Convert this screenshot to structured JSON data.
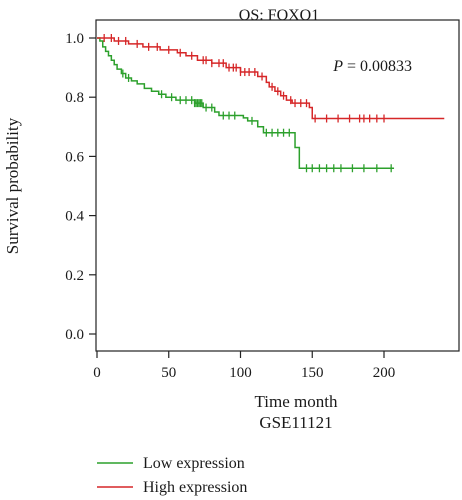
{
  "chart_data": {
    "type": "line",
    "title": "OS: FOXO1",
    "xlabel": "Time month",
    "xlabel2": "GSE11121",
    "ylabel": "Survival probability",
    "annotation": "P = 0.00833",
    "annotation_italic": "P",
    "annotation_rest": " = 0.00833",
    "xlim": [
      0,
      240
    ],
    "ylim": [
      0,
      1
    ],
    "x_ticks": [
      0,
      50,
      100,
      150,
      200
    ],
    "x_tick_labels": [
      "0",
      "50",
      "100",
      "150",
      "200"
    ],
    "y_ticks": [
      0,
      0.2,
      0.4,
      0.6,
      0.8,
      1.0
    ],
    "y_tick_labels": [
      "0.0",
      "0.2",
      "0.4",
      "0.6",
      "0.8",
      "1.0"
    ],
    "grid": false,
    "legend_position": "bottom-left",
    "series": [
      {
        "name": "Low expression",
        "color": "#2ca02c",
        "steps": [
          [
            0,
            1.0
          ],
          [
            2,
            0.99
          ],
          [
            4,
            0.97
          ],
          [
            6,
            0.955
          ],
          [
            8,
            0.94
          ],
          [
            10,
            0.925
          ],
          [
            12,
            0.91
          ],
          [
            14,
            0.895
          ],
          [
            17,
            0.88
          ],
          [
            20,
            0.865
          ],
          [
            24,
            0.855
          ],
          [
            28,
            0.845
          ],
          [
            33,
            0.83
          ],
          [
            38,
            0.82
          ],
          [
            43,
            0.81
          ],
          [
            48,
            0.8
          ],
          [
            55,
            0.79
          ],
          [
            68,
            0.78
          ],
          [
            74,
            0.765
          ],
          [
            82,
            0.75
          ],
          [
            85,
            0.738
          ],
          [
            102,
            0.73
          ],
          [
            105,
            0.72
          ],
          [
            112,
            0.7
          ],
          [
            116,
            0.68
          ],
          [
            138,
            0.63
          ],
          [
            141,
            0.56
          ],
          [
            207,
            0.56
          ]
        ],
        "censor": [
          18,
          22,
          45,
          52,
          58,
          62,
          66,
          68,
          69,
          70,
          71,
          72,
          73,
          76,
          80,
          88,
          92,
          96,
          108,
          118,
          122,
          126,
          130,
          134,
          146,
          150,
          155,
          160,
          165,
          170,
          178,
          186,
          195,
          205
        ]
      },
      {
        "name": "High expression",
        "color": "#d62728",
        "steps": [
          [
            0,
            1.0
          ],
          [
            12,
            0.99
          ],
          [
            22,
            0.98
          ],
          [
            32,
            0.97
          ],
          [
            44,
            0.96
          ],
          [
            56,
            0.95
          ],
          [
            62,
            0.94
          ],
          [
            70,
            0.925
          ],
          [
            80,
            0.915
          ],
          [
            90,
            0.9
          ],
          [
            100,
            0.885
          ],
          [
            112,
            0.87
          ],
          [
            118,
            0.85
          ],
          [
            120,
            0.835
          ],
          [
            124,
            0.82
          ],
          [
            128,
            0.805
          ],
          [
            132,
            0.79
          ],
          [
            136,
            0.78
          ],
          [
            148,
            0.765
          ],
          [
            150,
            0.728
          ],
          [
            242,
            0.728
          ]
        ],
        "censor": [
          5,
          10,
          15,
          20,
          28,
          36,
          42,
          50,
          58,
          66,
          74,
          76,
          80,
          85,
          88,
          92,
          95,
          97,
          100,
          103,
          106,
          110,
          115,
          122,
          126,
          130,
          135,
          138,
          142,
          146,
          152,
          160,
          168,
          176,
          183,
          186,
          190,
          195,
          200
        ]
      }
    ]
  }
}
